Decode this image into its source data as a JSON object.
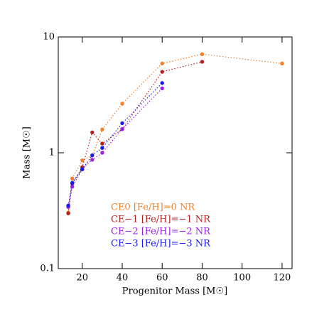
{
  "chart_data": {
    "type": "line",
    "x_label": "Progenitor Mass [M☉]",
    "y_label": "Mass [M☉]",
    "xlim": [
      8,
      125
    ],
    "xticks": [
      20,
      40,
      60,
      80,
      100,
      120
    ],
    "ylim": [
      0.1,
      10
    ],
    "yticks": [
      0.1,
      1,
      10
    ],
    "y_log": true,
    "series": [
      {
        "name": "CE0 [Fe/H]=0 NR",
        "color": "#f0812a",
        "x": [
          13,
          15,
          20,
          25,
          30,
          40,
          60,
          80,
          120
        ],
        "values": [
          0.305,
          0.6,
          0.86,
          0.95,
          1.59,
          2.65,
          5.9,
          7.1,
          5.9
        ]
      },
      {
        "name": "CE−1 [Fe/H]=−1 NR",
        "color": "#b22222",
        "x": [
          13,
          15,
          20,
          25,
          30,
          40,
          60,
          80
        ],
        "values": [
          0.3,
          0.54,
          0.75,
          1.5,
          1.2,
          1.6,
          5.0,
          6.1
        ]
      },
      {
        "name": "CE−2 [Fe/H]=−2 NR",
        "color": "#9b20e0",
        "x": [
          13,
          15,
          20,
          25,
          30,
          40,
          60
        ],
        "values": [
          0.34,
          0.51,
          0.72,
          0.87,
          1.0,
          1.6,
          3.6
        ]
      },
      {
        "name": "CE−3 [Fe/H]=−3 NR",
        "color": "#1a1aee",
        "x": [
          13,
          15,
          20,
          25,
          30,
          40,
          60
        ],
        "values": [
          0.35,
          0.55,
          0.72,
          0.95,
          1.1,
          1.8,
          4.0
        ]
      }
    ]
  }
}
